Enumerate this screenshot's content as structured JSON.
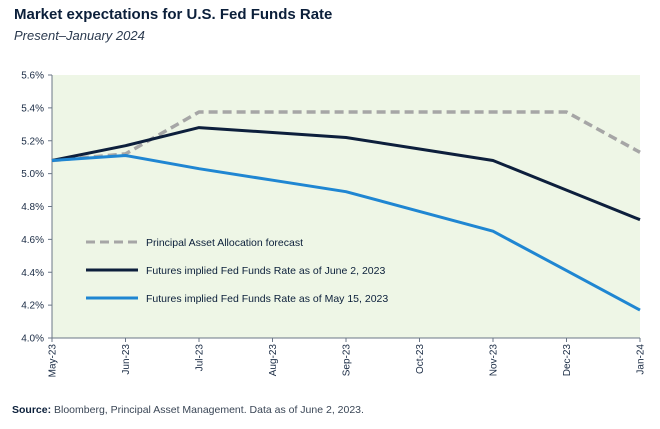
{
  "header": {
    "title": "Market expectations for U.S. Fed Funds Rate",
    "subtitle": "Present–January 2024"
  },
  "footer": {
    "source_label": "Source:",
    "source_text": " Bloomberg, Principal Asset Management. Data as of June 2, 2023."
  },
  "chart_data": {
    "type": "line",
    "title": "Market expectations for U.S. Fed Funds Rate",
    "subtitle": "Present–January 2024",
    "xlabel": "",
    "ylabel": "",
    "categories": [
      "May-23",
      "Jun-23",
      "Jul-23",
      "Aug-23",
      "Sep-23",
      "Oct-23",
      "Nov-23",
      "Dec-23",
      "Jan-24"
    ],
    "y_ticks": [
      "4.0%",
      "4.2%",
      "4.4%",
      "4.6%",
      "4.8%",
      "5.0%",
      "5.2%",
      "5.4%",
      "5.6%"
    ],
    "ylim": [
      4.0,
      5.6
    ],
    "grid": false,
    "plot_background": "#eef6e6",
    "legend_position": "lower-left",
    "series": [
      {
        "name": "Principal Asset Allocation forecast",
        "color": "#a6a6a6",
        "style": "dashed",
        "values": [
          5.08,
          5.12,
          5.375,
          5.375,
          5.375,
          5.375,
          5.375,
          5.375,
          5.13
        ]
      },
      {
        "name": "Futures implied Fed Funds Rate as of June 2, 2023",
        "color": "#0d1f3c",
        "style": "solid",
        "values": [
          5.08,
          5.17,
          5.28,
          5.25,
          5.22,
          5.15,
          5.08,
          4.9,
          4.72
        ]
      },
      {
        "name": "Futures implied Fed Funds Rate as of May 15, 2023",
        "color": "#1f86d2",
        "style": "solid",
        "values": [
          5.08,
          5.11,
          5.03,
          4.96,
          4.89,
          4.77,
          4.65,
          4.41,
          4.17
        ]
      }
    ]
  }
}
